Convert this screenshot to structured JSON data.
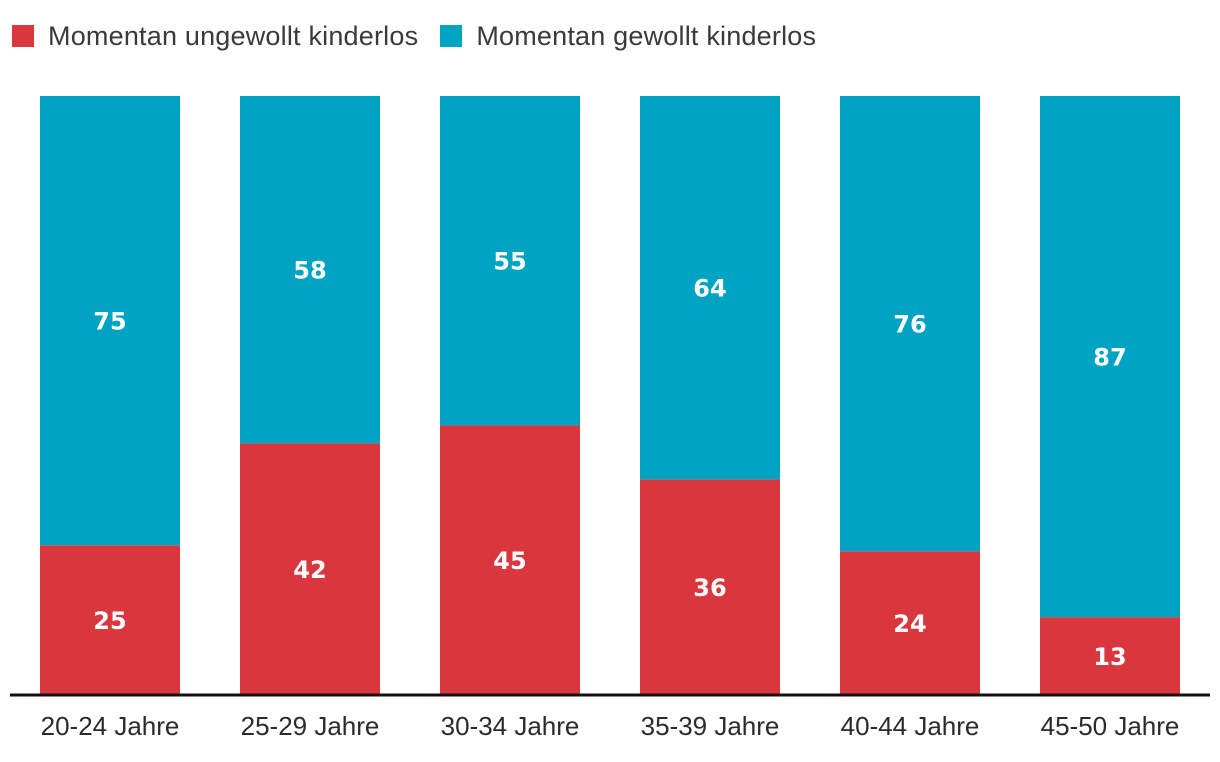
{
  "legend": [
    {
      "label": "Momentan ungewollt kinderlos",
      "color": "#d9363e"
    },
    {
      "label": "Momentan gewollt kinderlos",
      "color": "#00a3c2"
    }
  ],
  "chart_data": {
    "type": "bar",
    "stacked": true,
    "categories": [
      "20-24 Jahre",
      "25-29 Jahre",
      "30-34 Jahre",
      "35-39 Jahre",
      "40-44 Jahre",
      "45-50 Jahre"
    ],
    "series": [
      {
        "name": "Momentan ungewollt kinderlos",
        "color": "#d9363e",
        "values": [
          25,
          42,
          45,
          36,
          24,
          13
        ]
      },
      {
        "name": "Momentan gewollt kinderlos",
        "color": "#00a3c2",
        "values": [
          75,
          58,
          55,
          64,
          76,
          87
        ]
      }
    ],
    "title": "",
    "xlabel": "",
    "ylabel": "",
    "ylim": [
      0,
      100
    ],
    "grid": false,
    "legend_position": "top-left"
  }
}
